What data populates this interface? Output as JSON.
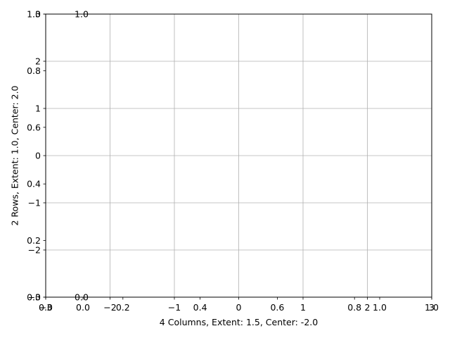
{
  "chart_data": {
    "type": "line",
    "title": "",
    "xlabel": "4 Columns, Extent: 1.5, Center: -2.0",
    "ylabel": "2 Rows, Extent: 1.0, Center: 2.0",
    "grid": true,
    "axes": {
      "primary": {
        "xlim": [
          -3,
          3
        ],
        "ylim": [
          -3,
          3
        ],
        "x_ticks": [
          -3,
          -2,
          -1,
          0,
          1,
          2,
          3
        ],
        "y_ticks": [
          -3,
          -2,
          -1,
          0,
          1,
          2,
          3
        ]
      },
      "secondary": {
        "xlim": [
          0,
          1
        ],
        "ylim": [
          0,
          1
        ],
        "x_ticks": [
          0.0,
          0.2,
          0.4,
          0.6,
          0.8,
          1.0
        ],
        "y_ticks": [
          0.0,
          0.2,
          0.4,
          0.6,
          0.8,
          1.0
        ]
      },
      "inset": {
        "xlim": [
          0,
          1
        ],
        "ylim": [
          0,
          1
        ],
        "x_ticks": [
          0.0,
          1.0
        ],
        "y_ticks": [
          0.0,
          1.0
        ]
      }
    },
    "series": [
      {
        "axes": "inset",
        "x": [
          0,
          1
        ],
        "y": [
          1,
          1
        ]
      }
    ]
  }
}
